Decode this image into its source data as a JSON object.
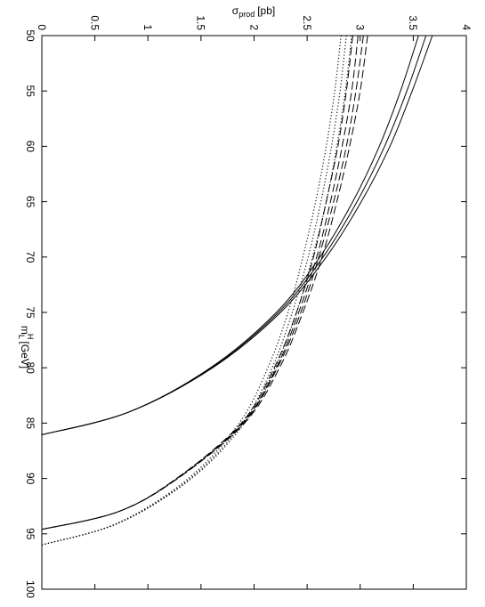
{
  "chart_data": {
    "type": "line",
    "orientation": "rotated-90-clockwise",
    "x_axis": {
      "quantity": "m_L^H",
      "label_main": "m",
      "label_sub": "L",
      "label_sup": "H",
      "label_unit": "[GeV]",
      "range": [
        50,
        100
      ],
      "ticks": [
        "50",
        "55",
        "60",
        "65",
        "70",
        "75",
        "80",
        "85",
        "90",
        "95",
        "100"
      ]
    },
    "y_axis": {
      "quantity": "sigma_prod",
      "label_main": "σ",
      "label_sub": "prod",
      "label_unit": "[pb]",
      "range": [
        0,
        4
      ],
      "ticks": [
        "0",
        "0.5",
        "1",
        "1.5",
        "2",
        "2.5",
        "3",
        "3.5",
        "4"
      ]
    },
    "grid": false,
    "legend": "none",
    "series": [
      {
        "style": "solid",
        "x": [
          50,
          55,
          60,
          65,
          70,
          75,
          80,
          84,
          86.05
        ],
        "y": [
          3.55,
          3.38,
          3.18,
          2.93,
          2.62,
          2.21,
          1.59,
          0.82,
          0.0
        ]
      },
      {
        "style": "solid",
        "x": [
          50,
          55,
          60,
          65,
          70,
          75,
          80,
          84,
          86.05
        ],
        "y": [
          3.62,
          3.44,
          3.23,
          2.97,
          2.65,
          2.23,
          1.6,
          0.82,
          0.0
        ]
      },
      {
        "style": "solid",
        "x": [
          50,
          55,
          60,
          65,
          70,
          75,
          80,
          84,
          86.05
        ],
        "y": [
          3.68,
          3.49,
          3.28,
          3.01,
          2.68,
          2.25,
          1.61,
          0.82,
          0.0
        ]
      },
      {
        "style": "dashed",
        "x": [
          50,
          55,
          60,
          65,
          70,
          75,
          80,
          85,
          90,
          93,
          94.6
        ],
        "y": [
          2.93,
          2.87,
          2.79,
          2.68,
          2.56,
          2.4,
          2.19,
          1.88,
          1.27,
          0.72,
          0.0
        ]
      },
      {
        "style": "dashed",
        "x": [
          50,
          55,
          60,
          65,
          70,
          75,
          80,
          85,
          90,
          93,
          94.6
        ],
        "y": [
          2.98,
          2.92,
          2.83,
          2.72,
          2.59,
          2.42,
          2.21,
          1.89,
          1.27,
          0.72,
          0.0
        ]
      },
      {
        "style": "dashed",
        "x": [
          50,
          55,
          60,
          65,
          70,
          75,
          80,
          85,
          90,
          93,
          94.6
        ],
        "y": [
          3.03,
          2.96,
          2.87,
          2.75,
          2.61,
          2.44,
          2.22,
          1.9,
          1.28,
          0.72,
          0.0
        ]
      },
      {
        "style": "dashed",
        "x": [
          50,
          55,
          60,
          65,
          70,
          75,
          80,
          85,
          90,
          93,
          94.6
        ],
        "y": [
          3.07,
          3.0,
          2.9,
          2.78,
          2.64,
          2.46,
          2.24,
          1.91,
          1.28,
          0.72,
          0.0
        ]
      },
      {
        "style": "dotted",
        "x": [
          50,
          55,
          60,
          65,
          70,
          75,
          80,
          85,
          90,
          94,
          96.0
        ],
        "y": [
          2.82,
          2.76,
          2.68,
          2.58,
          2.46,
          2.32,
          2.13,
          1.86,
          1.38,
          0.72,
          0.0
        ]
      },
      {
        "style": "dotted",
        "x": [
          50,
          55,
          60,
          65,
          70,
          75,
          80,
          85,
          90,
          94,
          96.0
        ],
        "y": [
          2.87,
          2.81,
          2.73,
          2.63,
          2.51,
          2.36,
          2.17,
          1.89,
          1.4,
          0.73,
          0.0
        ]
      },
      {
        "style": "dotted",
        "x": [
          50,
          55,
          60,
          65,
          70,
          75,
          80,
          85,
          90,
          94,
          96.0
        ],
        "y": [
          2.92,
          2.86,
          2.78,
          2.68,
          2.55,
          2.4,
          2.2,
          1.91,
          1.41,
          0.73,
          0.0
        ]
      }
    ]
  }
}
